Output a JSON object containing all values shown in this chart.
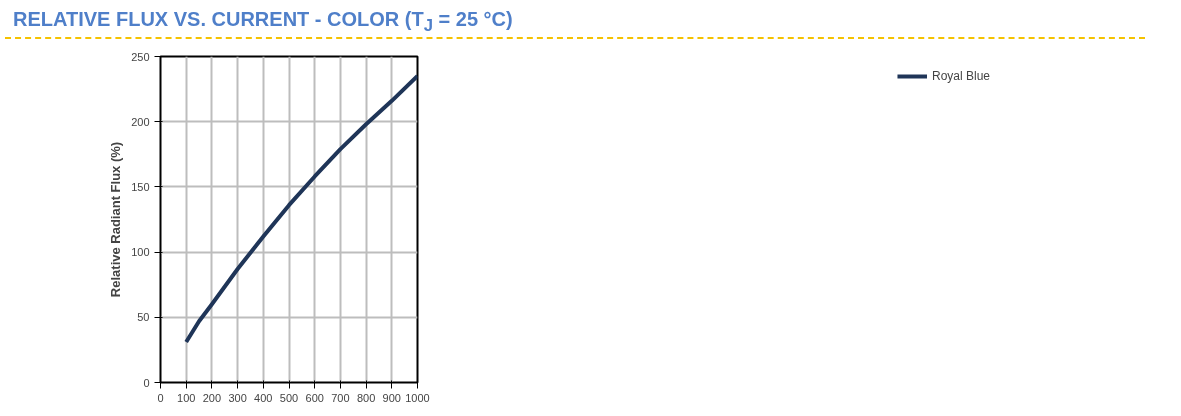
{
  "chart_data": {
    "type": "line",
    "title": "RELATIVE FLUX VS. CURRENT - COLOR (T$_{J}$ = 25 °C)",
    "ylabel": "Relative Radiant Flux (%)",
    "x": [
      100,
      150,
      200,
      300,
      400,
      500,
      600,
      700,
      800,
      900,
      1000
    ],
    "series": [
      {
        "name": "Royal Blue",
        "color": "#1f3558",
        "values": [
          31,
          47,
          60,
          87,
          112,
          136,
          158,
          179,
          198,
          216,
          235
        ]
      }
    ],
    "xlim": [
      0,
      1000
    ],
    "xticks": [
      0,
      100,
      200,
      300,
      400,
      500,
      600,
      700,
      800,
      900,
      1000
    ],
    "ylim": [
      0,
      250
    ],
    "yticks": [
      0,
      50,
      100,
      150,
      200,
      250
    ],
    "grid": true,
    "legend": "right",
    "marker": "none",
    "line_style": "solid"
  }
}
